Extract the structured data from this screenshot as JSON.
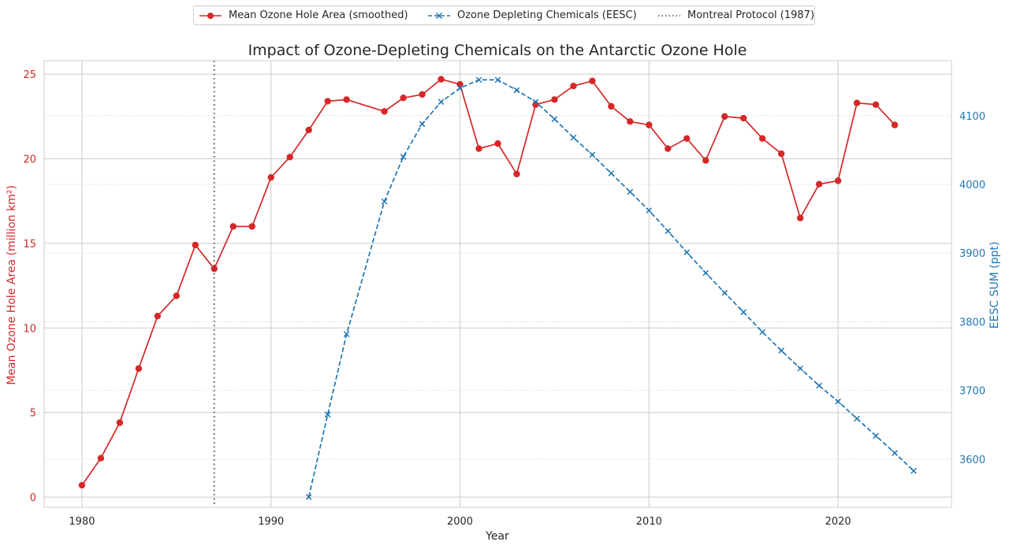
{
  "chart_data": {
    "type": "line",
    "title": "Impact of Ozone-Depleting Chemicals on the Antarctic Ozone Hole",
    "xlabel": "Year",
    "ylabel_left": "Mean Ozone Hole Area (million km²)",
    "ylabel_right": "EESC SUM (ppt)",
    "xlim": [
      1978,
      2026
    ],
    "ylim_left": [
      -0.6,
      25.8
    ],
    "ylim_right": [
      3530,
      4180
    ],
    "xticks": [
      1980,
      1990,
      2000,
      2010,
      2020
    ],
    "yticks_left": [
      0,
      5,
      10,
      15,
      20,
      25
    ],
    "yticks_right": [
      3600,
      3700,
      3800,
      3900,
      4000,
      4100
    ],
    "grid": true,
    "legend_position": "top-center",
    "colors": {
      "ozone": "#d62728",
      "eesc": "#1f77b4",
      "protocol": "#808080",
      "grid": "#cccccc",
      "text": "#262626"
    },
    "series": [
      {
        "name": "Mean Ozone Hole Area (smoothed)",
        "axis": "left",
        "style": "solid-circle",
        "x": [
          1980,
          1981,
          1982,
          1983,
          1984,
          1985,
          1986,
          1987,
          1988,
          1989,
          1990,
          1991,
          1992,
          1993,
          1994,
          1996,
          1997,
          1998,
          1999,
          2000,
          2001,
          2002,
          2003,
          2004,
          2005,
          2006,
          2007,
          2008,
          2009,
          2010,
          2011,
          2012,
          2013,
          2014,
          2015,
          2016,
          2017,
          2018,
          2019,
          2020,
          2021,
          2022,
          2023
        ],
        "values": [
          0.7,
          2.3,
          4.4,
          7.6,
          10.7,
          11.9,
          14.9,
          13.5,
          16.0,
          16.0,
          18.9,
          20.1,
          21.7,
          23.4,
          23.5,
          22.8,
          23.6,
          23.8,
          24.7,
          24.4,
          20.6,
          20.9,
          19.1,
          23.2,
          23.5,
          24.3,
          24.6,
          23.1,
          22.2,
          22.0,
          20.6,
          21.2,
          19.9,
          22.5,
          22.4,
          21.2,
          20.3,
          16.5,
          18.5,
          18.7,
          23.3,
          23.2,
          22.0
        ]
      },
      {
        "name": "Ozone Depleting Chemicals (EESC)",
        "axis": "right",
        "style": "dashed-x",
        "x": [
          1992,
          1993,
          1994,
          1996,
          1997,
          1998,
          1999,
          2000,
          2001,
          2002,
          2003,
          2004,
          2005,
          2006,
          2007,
          2008,
          2009,
          2010,
          2011,
          2012,
          2013,
          2014,
          2015,
          2016,
          2017,
          2018,
          2019,
          2020,
          2021,
          2022,
          2023,
          2024
        ],
        "values": [
          3545,
          3665,
          3782,
          3975,
          4040,
          4088,
          4120,
          4140,
          4152,
          4152,
          4137,
          4120,
          4095,
          4068,
          4043,
          4016,
          3989,
          3962,
          3932,
          3901,
          3871,
          3842,
          3814,
          3785,
          3758,
          3732,
          3707,
          3684,
          3659,
          3634,
          3609,
          3583
        ]
      }
    ],
    "annotations": [
      {
        "type": "vline",
        "x": 1987,
        "label": "Montreal Protocol (1987)"
      }
    ]
  }
}
